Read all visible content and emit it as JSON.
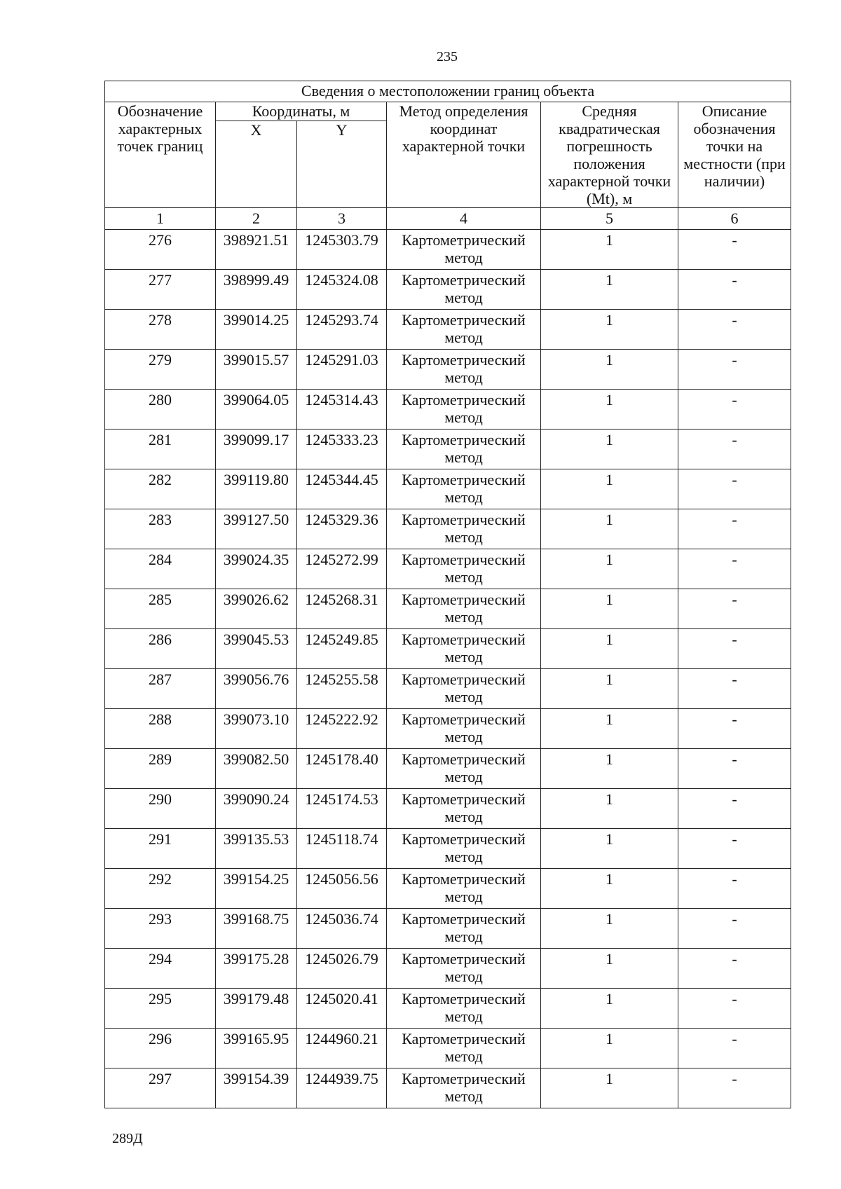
{
  "page_number": "235",
  "footer_code": "289Д",
  "table": {
    "title": "Сведения о местоположении границ объекта",
    "headers": {
      "point": "Обозначение характерных точек границ",
      "coords": "Координаты, м",
      "x": "X",
      "y": "Y",
      "method": "Метод определения координат характерной точки",
      "error": "Средняя квадратическая погрешность положения характерной точки (Mt), м",
      "description": "Описание обозначения точки на местности (при наличии)"
    },
    "column_numbers": [
      "1",
      "2",
      "3",
      "4",
      "5",
      "6"
    ],
    "rows": [
      {
        "point": "276",
        "x": "398921.51",
        "y": "1245303.79",
        "method": "Картометрический метод",
        "error": "1",
        "description": "-"
      },
      {
        "point": "277",
        "x": "398999.49",
        "y": "1245324.08",
        "method": "Картометрический метод",
        "error": "1",
        "description": "-"
      },
      {
        "point": "278",
        "x": "399014.25",
        "y": "1245293.74",
        "method": "Картометрический метод",
        "error": "1",
        "description": "-"
      },
      {
        "point": "279",
        "x": "399015.57",
        "y": "1245291.03",
        "method": "Картометрический метод",
        "error": "1",
        "description": "-"
      },
      {
        "point": "280",
        "x": "399064.05",
        "y": "1245314.43",
        "method": "Картометрический метод",
        "error": "1",
        "description": "-"
      },
      {
        "point": "281",
        "x": "399099.17",
        "y": "1245333.23",
        "method": "Картометрический метод",
        "error": "1",
        "description": "-"
      },
      {
        "point": "282",
        "x": "399119.80",
        "y": "1245344.45",
        "method": "Картометрический метод",
        "error": "1",
        "description": "-"
      },
      {
        "point": "283",
        "x": "399127.50",
        "y": "1245329.36",
        "method": "Картометрический метод",
        "error": "1",
        "description": "-"
      },
      {
        "point": "284",
        "x": "399024.35",
        "y": "1245272.99",
        "method": "Картометрический метод",
        "error": "1",
        "description": "-"
      },
      {
        "point": "285",
        "x": "399026.62",
        "y": "1245268.31",
        "method": "Картометрический метод",
        "error": "1",
        "description": "-"
      },
      {
        "point": "286",
        "x": "399045.53",
        "y": "1245249.85",
        "method": "Картометрический метод",
        "error": "1",
        "description": "-"
      },
      {
        "point": "287",
        "x": "399056.76",
        "y": "1245255.58",
        "method": "Картометрический метод",
        "error": "1",
        "description": "-"
      },
      {
        "point": "288",
        "x": "399073.10",
        "y": "1245222.92",
        "method": "Картометрический метод",
        "error": "1",
        "description": "-"
      },
      {
        "point": "289",
        "x": "399082.50",
        "y": "1245178.40",
        "method": "Картометрический метод",
        "error": "1",
        "description": "-"
      },
      {
        "point": "290",
        "x": "399090.24",
        "y": "1245174.53",
        "method": "Картометрический метод",
        "error": "1",
        "description": "-"
      },
      {
        "point": "291",
        "x": "399135.53",
        "y": "1245118.74",
        "method": "Картометрический метод",
        "error": "1",
        "description": "-"
      },
      {
        "point": "292",
        "x": "399154.25",
        "y": "1245056.56",
        "method": "Картометрический метод",
        "error": "1",
        "description": "-"
      },
      {
        "point": "293",
        "x": "399168.75",
        "y": "1245036.74",
        "method": "Картометрический метод",
        "error": "1",
        "description": "-"
      },
      {
        "point": "294",
        "x": "399175.28",
        "y": "1245026.79",
        "method": "Картометрический метод",
        "error": "1",
        "description": "-"
      },
      {
        "point": "295",
        "x": "399179.48",
        "y": "1245020.41",
        "method": "Картометрический метод",
        "error": "1",
        "description": "-"
      },
      {
        "point": "296",
        "x": "399165.95",
        "y": "1244960.21",
        "method": "Картометрический метод",
        "error": "1",
        "description": "-"
      },
      {
        "point": "297",
        "x": "399154.39",
        "y": "1244939.75",
        "method": "Картометрический метод",
        "error": "1",
        "description": "-"
      }
    ]
  }
}
